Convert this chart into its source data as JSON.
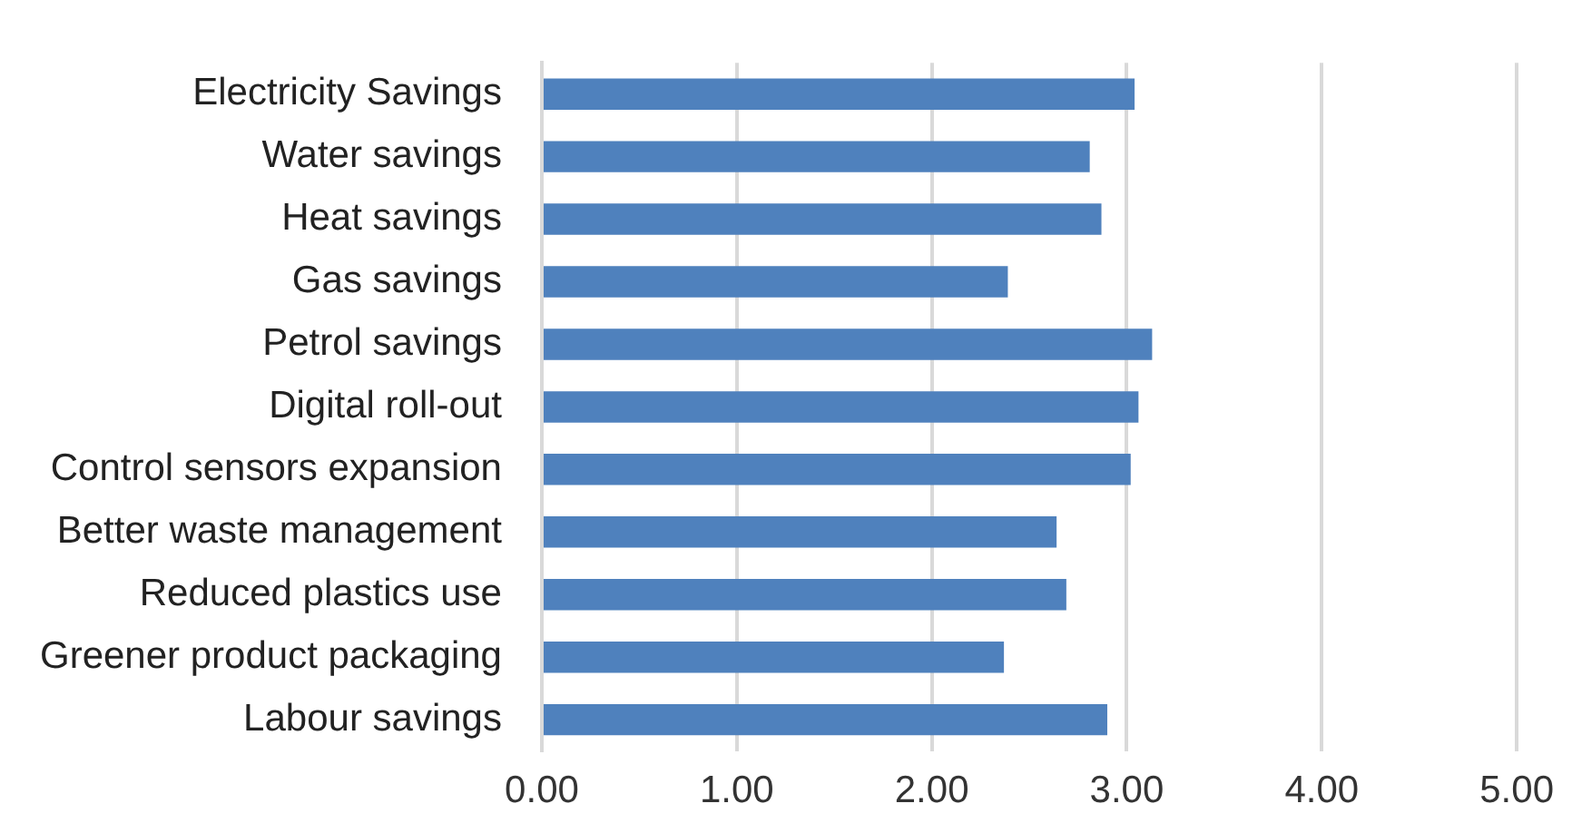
{
  "chart_data": {
    "type": "bar",
    "orientation": "horizontal",
    "categories": [
      "Electricity Savings",
      "Water savings",
      "Heat savings",
      "Gas savings",
      "Petrol savings",
      "Digital roll-out",
      "Control sensors expansion",
      "Better waste management",
      "Reduced plastics use",
      "Greener product packaging",
      "Labour savings"
    ],
    "values": [
      3.04,
      2.81,
      2.87,
      2.39,
      3.13,
      3.06,
      3.02,
      2.64,
      2.69,
      2.37,
      2.9
    ],
    "color": "#4f81bd",
    "xlim": [
      0,
      5
    ],
    "xticks": [
      {
        "value": 0,
        "label": "0.00"
      },
      {
        "value": 1,
        "label": "1.00"
      },
      {
        "value": 2,
        "label": "2.00"
      },
      {
        "value": 3,
        "label": "3.00"
      },
      {
        "value": 4,
        "label": "4.00"
      },
      {
        "value": 5,
        "label": "5.00"
      }
    ],
    "grid": "x",
    "legend": false
  }
}
